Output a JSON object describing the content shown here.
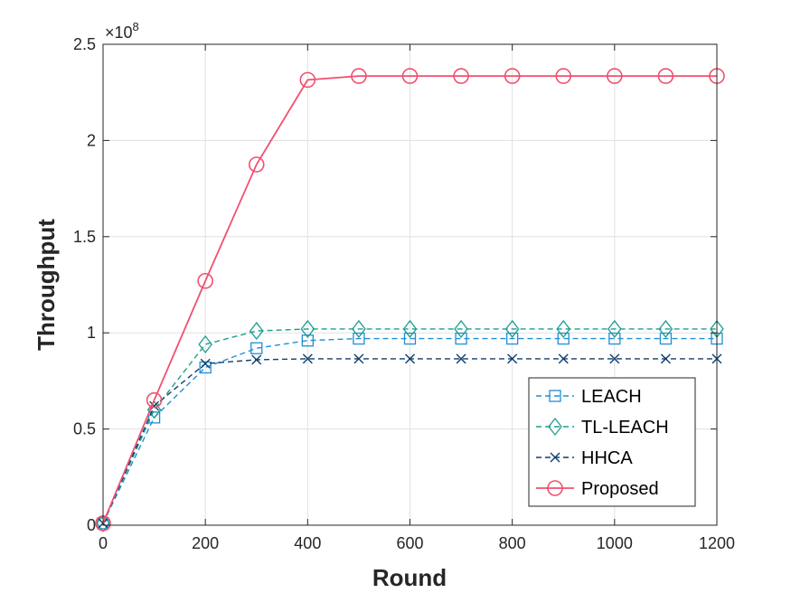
{
  "chart_data": {
    "type": "line",
    "xlabel": "Round",
    "ylabel": "Throughput",
    "y_exponent_label": "×10",
    "y_exponent_power": "8",
    "xlim": [
      0,
      1200
    ],
    "ylim": [
      0,
      2.5
    ],
    "x_ticks": [
      0,
      200,
      400,
      600,
      800,
      1000,
      1200
    ],
    "x_tick_labels": [
      "0",
      "200",
      "400",
      "600",
      "800",
      "1000",
      "1200"
    ],
    "y_ticks": [
      0,
      0.5,
      1,
      1.5,
      2,
      2.5
    ],
    "y_tick_labels": [
      "0",
      "0.5",
      "1",
      "1.5",
      "2",
      "2.5"
    ],
    "grid": true,
    "legend_position": "bottom-right",
    "x": [
      0,
      100,
      200,
      300,
      400,
      500,
      600,
      700,
      800,
      900,
      1000,
      1100,
      1200
    ],
    "series": [
      {
        "name": "LEACH",
        "color": "#1f8fd6",
        "dash": true,
        "marker": "square",
        "values": [
          0.01,
          0.56,
          0.82,
          0.92,
          0.96,
          0.97,
          0.97,
          0.97,
          0.97,
          0.97,
          0.97,
          0.97,
          0.97
        ]
      },
      {
        "name": "TL-LEACH",
        "color": "#1f9e8f",
        "dash": true,
        "marker": "diamond",
        "values": [
          0.01,
          0.6,
          0.94,
          1.01,
          1.02,
          1.02,
          1.02,
          1.02,
          1.02,
          1.02,
          1.02,
          1.02,
          1.02
        ]
      },
      {
        "name": "HHCA",
        "color": "#0f3f6e",
        "dash": true,
        "marker": "x",
        "values": [
          0.01,
          0.62,
          0.84,
          0.86,
          0.865,
          0.865,
          0.865,
          0.865,
          0.865,
          0.865,
          0.865,
          0.865,
          0.865
        ]
      },
      {
        "name": "Proposed",
        "color": "#f0506e",
        "dash": false,
        "marker": "circle",
        "values": [
          0.01,
          0.65,
          1.27,
          1.875,
          2.315,
          2.335,
          2.335,
          2.335,
          2.335,
          2.335,
          2.335,
          2.335,
          2.335
        ]
      }
    ]
  }
}
